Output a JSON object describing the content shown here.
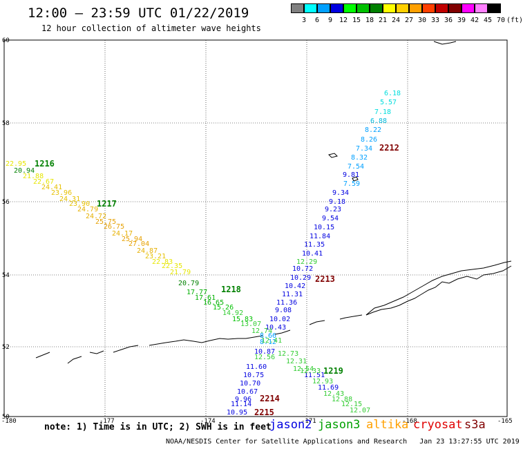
{
  "header": {
    "title": "12:00 — 23:59 UTC 01/22/2019",
    "subtitle": "12 hour collection of altimeter wave heights"
  },
  "legend": {
    "unit": "(ft)",
    "bins": [
      {
        "label": "3",
        "color": "#808080"
      },
      {
        "label": "6",
        "color": "#00ffff"
      },
      {
        "label": "9",
        "color": "#00a0ff"
      },
      {
        "label": "12",
        "color": "#0000e0"
      },
      {
        "label": "15",
        "color": "#00ff00"
      },
      {
        "label": "18",
        "color": "#00c000"
      },
      {
        "label": "21",
        "color": "#008000"
      },
      {
        "label": "24",
        "color": "#ffff00"
      },
      {
        "label": "27",
        "color": "#ffd000"
      },
      {
        "label": "30",
        "color": "#ffa000"
      },
      {
        "label": "33",
        "color": "#ff4000"
      },
      {
        "label": "36",
        "color": "#c00000"
      },
      {
        "label": "39",
        "color": "#800000"
      },
      {
        "label": "42",
        "color": "#ff00ff"
      },
      {
        "label": "45",
        "color": "#ff80ff"
      },
      {
        "label": "70",
        "color": "#000000"
      }
    ]
  },
  "axes": {
    "lon_labels": [
      "-180",
      "-177",
      "-174",
      "-171",
      "-168",
      "-165"
    ],
    "lat_labels": [
      "60",
      "58",
      "56",
      "54",
      "52",
      "50"
    ]
  },
  "tracks": [
    {
      "name": "track-upper-right",
      "values": [
        {
          "v": "6.18",
          "c": "#00dddd"
        },
        {
          "v": "5.57",
          "c": "#00dddd"
        },
        {
          "v": "7.18",
          "c": "#00dddd"
        },
        {
          "v": "6.88",
          "c": "#00bbdd"
        },
        {
          "v": "8.22",
          "c": "#00a0ff"
        },
        {
          "v": "8.26",
          "c": "#00a0ff"
        },
        {
          "v": "7.34",
          "c": "#00a0ff"
        },
        {
          "v": "8.32",
          "c": "#00a0ff"
        },
        {
          "v": "7.54",
          "c": "#00a0ff"
        },
        {
          "v": "7.59",
          "c": "#00a0ff"
        },
        {
          "v": "9.81",
          "c": "#0000e0"
        },
        {
          "v": "9.34",
          "c": "#0000e0"
        },
        {
          "v": "9.18",
          "c": "#0000e0"
        },
        {
          "v": "9.23",
          "c": "#0000e0"
        },
        {
          "v": "9.54",
          "c": "#0000e0"
        },
        {
          "v": "10.15",
          "c": "#0000e0"
        },
        {
          "v": "11.84",
          "c": "#0000e0"
        },
        {
          "v": "11.35",
          "c": "#0000e0"
        },
        {
          "v": "10.41",
          "c": "#0000e0"
        },
        {
          "v": "12.29",
          "c": "#33cc33"
        },
        {
          "v": "10.72",
          "c": "#0000e0"
        },
        {
          "v": "10.29",
          "c": "#0000e0"
        },
        {
          "v": "10.42",
          "c": "#0000e0"
        },
        {
          "v": "11.31",
          "c": "#0000e0"
        },
        {
          "v": "11.36",
          "c": "#0000e0"
        },
        {
          "v": "9.08",
          "c": "#0000e0"
        },
        {
          "v": "10.02",
          "c": "#0000e0"
        },
        {
          "v": "10.43",
          "c": "#0000e0"
        },
        {
          "v": "8.66",
          "c": "#00a0ff"
        },
        {
          "v": "8.12",
          "c": "#00a0ff"
        },
        {
          "v": "10.87",
          "c": "#0000e0"
        },
        {
          "v": "11.60",
          "c": "#0000e0"
        },
        {
          "v": "10.75",
          "c": "#0000e0"
        },
        {
          "v": "10.70",
          "c": "#0000e0"
        },
        {
          "v": "10.67",
          "c": "#0000e0"
        },
        {
          "v": "9.96",
          "c": "#0000e0"
        },
        {
          "v": "11.14",
          "c": "#0000e0"
        },
        {
          "v": "10.95",
          "c": "#0000e0"
        }
      ]
    },
    {
      "name": "track-diagonal",
      "values": [
        {
          "v": "22.95",
          "c": "#e6e600"
        },
        {
          "v": "20.94",
          "c": "#008000"
        },
        {
          "v": "21.88",
          "c": "#e6e600"
        },
        {
          "v": "22.67",
          "c": "#e6e600"
        },
        {
          "v": "24.41",
          "c": "#e6c000"
        },
        {
          "v": "23.96",
          "c": "#e6c000"
        },
        {
          "v": "24.31",
          "c": "#e6c000"
        },
        {
          "v": "23.90",
          "c": "#e6c000"
        },
        {
          "v": "24.79",
          "c": "#e6b000"
        },
        {
          "v": "24.72",
          "c": "#e6b000"
        },
        {
          "v": "25.75",
          "c": "#e6a000"
        },
        {
          "v": "26.75",
          "c": "#e6a000"
        },
        {
          "v": "24.17",
          "c": "#e6b000"
        },
        {
          "v": "25.94",
          "c": "#e6a000"
        },
        {
          "v": "27.04",
          "c": "#e6a000"
        },
        {
          "v": "24.87",
          "c": "#e6b000"
        },
        {
          "v": "23.21",
          "c": "#e6c000"
        },
        {
          "v": "22.83",
          "c": "#e6e600"
        },
        {
          "v": "22.35",
          "c": "#e6e600"
        },
        {
          "v": "21.79",
          "c": "#e6e600"
        },
        {
          "v": "20.79",
          "c": "#008000"
        },
        {
          "v": "17.77",
          "c": "#00b000"
        },
        {
          "v": "17.61",
          "c": "#00b000"
        },
        {
          "v": "16.65",
          "c": "#00b000"
        },
        {
          "v": "15.26",
          "c": "#00c000"
        },
        {
          "v": "14.92",
          "c": "#33cc33"
        },
        {
          "v": "15.83",
          "c": "#00c000"
        },
        {
          "v": "13.07",
          "c": "#33cc33"
        },
        {
          "v": "12.74",
          "c": "#33cc33"
        },
        {
          "v": "12.41",
          "c": "#33cc33"
        },
        {
          "v": "12.56",
          "c": "#33cc33"
        },
        {
          "v": "12.73",
          "c": "#33cc33"
        },
        {
          "v": "12.31",
          "c": "#33cc33"
        },
        {
          "v": "12.54",
          "c": "#33cc33"
        },
        {
          "v": "11.51",
          "c": "#0000e0"
        },
        {
          "v": "12.33",
          "c": "#33cc33"
        },
        {
          "v": "11.69",
          "c": "#0000e0"
        },
        {
          "v": "12.93",
          "c": "#33cc33"
        },
        {
          "v": "12.43",
          "c": "#33cc33"
        },
        {
          "v": "12.88",
          "c": "#33cc33"
        },
        {
          "v": "12.15",
          "c": "#33cc33"
        },
        {
          "v": "12.07",
          "c": "#33cc33"
        }
      ]
    }
  ],
  "pass_times": [
    {
      "label": "1216",
      "color": "#008000"
    },
    {
      "label": "1217",
      "color": "#008000"
    },
    {
      "label": "1218",
      "color": "#008000"
    },
    {
      "label": "1219",
      "color": "#008000"
    },
    {
      "label": "2212",
      "color": "#800000"
    },
    {
      "label": "2213",
      "color": "#800000"
    },
    {
      "label": "2214",
      "color": "#800000"
    },
    {
      "label": "2215",
      "color": "#800000"
    }
  ],
  "footer": {
    "note": "note: 1) Time is in UTC; 2) SWH is in feet",
    "satellites": [
      {
        "name": "jason2",
        "color": "#0000e0"
      },
      {
        "name": "jason3",
        "color": "#00a000"
      },
      {
        "name": "altika",
        "color": "#ffa000"
      },
      {
        "name": "cryosat",
        "color": "#e00000"
      },
      {
        "name": "s3a",
        "color": "#800000"
      }
    ],
    "credit": "NOAA/NESDIS Center for Satellite Applications and Research   Jan 23 13:27:55 UTC 2019"
  }
}
